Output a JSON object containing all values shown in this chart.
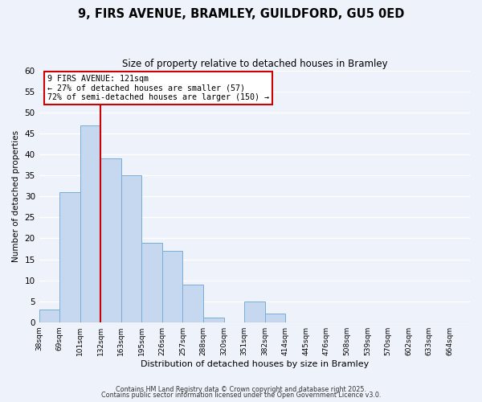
{
  "title1": "9, FIRS AVENUE, BRAMLEY, GUILDFORD, GU5 0ED",
  "title2": "Size of property relative to detached houses in Bramley",
  "xlabel": "Distribution of detached houses by size in Bramley",
  "ylabel": "Number of detached properties",
  "bin_labels": [
    "38sqm",
    "69sqm",
    "101sqm",
    "132sqm",
    "163sqm",
    "195sqm",
    "226sqm",
    "257sqm",
    "288sqm",
    "320sqm",
    "351sqm",
    "382sqm",
    "414sqm",
    "445sqm",
    "476sqm",
    "508sqm",
    "539sqm",
    "570sqm",
    "602sqm",
    "633sqm",
    "664sqm"
  ],
  "bar_values": [
    3,
    31,
    47,
    39,
    35,
    19,
    17,
    9,
    1,
    0,
    5,
    2,
    0,
    0,
    0,
    0,
    0,
    0,
    0,
    0,
    0
  ],
  "bar_color": "#c5d8f0",
  "bar_edge_color": "#7aadd4",
  "vline_x_index": 3,
  "vline_color": "#cc0000",
  "annotation_title": "9 FIRS AVENUE: 121sqm",
  "annotation_line1": "← 27% of detached houses are smaller (57)",
  "annotation_line2": "72% of semi-detached houses are larger (150) →",
  "annotation_box_color": "#ffffff",
  "annotation_box_edge": "#cc0000",
  "ylim": [
    0,
    60
  ],
  "yticks": [
    0,
    5,
    10,
    15,
    20,
    25,
    30,
    35,
    40,
    45,
    50,
    55,
    60
  ],
  "footnote1": "Contains HM Land Registry data © Crown copyright and database right 2025.",
  "footnote2": "Contains public sector information licensed under the Open Government Licence v3.0.",
  "bg_color": "#eef2fb",
  "grid_color": "#ffffff"
}
